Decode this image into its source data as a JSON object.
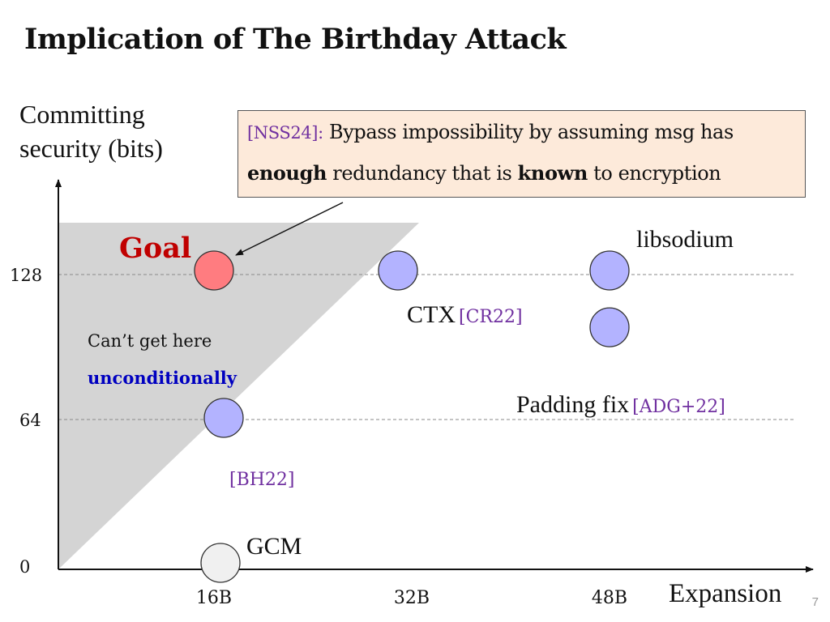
{
  "slide": {
    "title": "Implication of The Birthday Attack",
    "page_number": "7"
  },
  "callout": {
    "cite": "[NSS24]:",
    "line1_text": "Bypass impossibility by assuming msg has",
    "line2_bold1": "enough",
    "line2_mid": "redundancy that is",
    "line2_bold2": "known",
    "line2_end": "to encryption"
  },
  "chart_data": {
    "type": "scatter",
    "ylabel_lines": [
      "Committing",
      "security (bits)"
    ],
    "xlabel": "Expansion",
    "x_ticks": [
      {
        "value": 16,
        "label": "16B"
      },
      {
        "value": 32,
        "label": "32B"
      },
      {
        "value": 48,
        "label": "48B"
      }
    ],
    "y_ticks": [
      {
        "value": 0,
        "label": "0"
      },
      {
        "value": 64,
        "label": "64"
      },
      {
        "value": 128,
        "label": "128"
      }
    ],
    "reference_lines_y": [
      64,
      128
    ],
    "points": [
      {
        "name": "goal",
        "x": 16,
        "y": 128,
        "color": "#ff7c80",
        "label": "Goal",
        "label_color": "#c00000"
      },
      {
        "name": "ctx",
        "x": 30,
        "y": 128,
        "color": "#b3b3ff",
        "label": "CTX",
        "cite": "[CR22]"
      },
      {
        "name": "libsodium",
        "x": 48,
        "y": 128,
        "color": "#b3b3ff",
        "label": "libsodium"
      },
      {
        "name": "padding-fix",
        "x": 48,
        "y": 104,
        "color": "#b3b3ff",
        "label": "Padding fix",
        "cite": "[ADG+22]"
      },
      {
        "name": "bh22",
        "x": 16,
        "y": 64,
        "color": "#b3b3ff",
        "cite": "[BH22]"
      },
      {
        "name": "gcm",
        "x": 16,
        "y": 0,
        "color": "#f0f0f0",
        "label": "GCM"
      }
    ],
    "shaded_region": {
      "text_line1": "Can’t get here",
      "text_line2": "unconditionally",
      "text_line2_color": "#0000c0",
      "fill": "#d4d4d4"
    },
    "cite_color": "#7030a0"
  }
}
